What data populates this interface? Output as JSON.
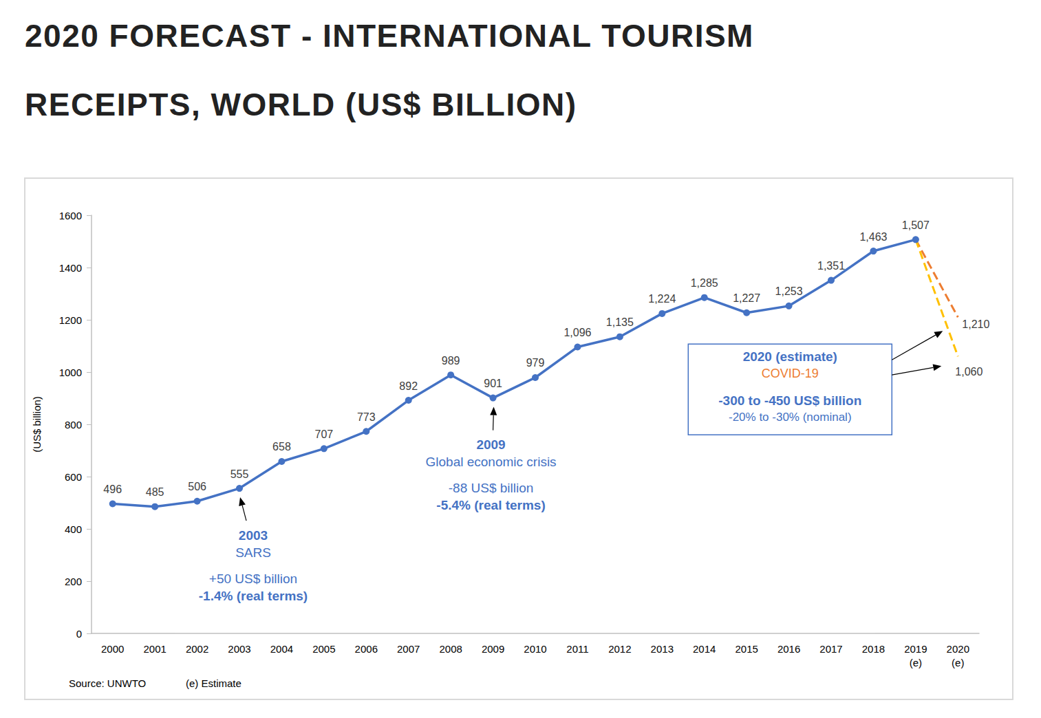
{
  "chart_data": {
    "type": "line",
    "title": "2020 FORECAST - INTERNATIONAL TOURISM RECEIPTS, WORLD (US$ BILLION)",
    "y_label": "(US$ billion)",
    "categories": [
      "2000",
      "2001",
      "2002",
      "2003",
      "2004",
      "2005",
      "2006",
      "2007",
      "2008",
      "2009",
      "2010",
      "2011",
      "2012",
      "2013",
      "2014",
      "2015",
      "2016",
      "2017",
      "2018",
      "2019\n(e)",
      "2020\n(e)"
    ],
    "series": [
      {
        "color": "#4472c4",
        "marker": "circle",
        "line_style": "solid",
        "values": [
          496,
          485,
          506,
          555,
          658,
          707,
          773,
          892,
          989,
          901,
          979,
          1096,
          1135,
          1224,
          1285,
          1227,
          1253,
          1351,
          1463,
          1507,
          null
        ],
        "value_labels": [
          "496",
          "485",
          "506",
          "555",
          "658",
          "707",
          "773",
          "892",
          "989",
          "901",
          "979",
          "1,096",
          "1,135",
          "1,224",
          "1,285",
          "1,227",
          "1,253",
          "1,351",
          "1,463",
          "1,507",
          null
        ]
      },
      {
        "color": "#ed7d31",
        "marker": "none",
        "line_style": "dashed",
        "values": [
          null,
          null,
          null,
          null,
          null,
          null,
          null,
          null,
          null,
          null,
          null,
          null,
          null,
          null,
          null,
          null,
          null,
          null,
          null,
          1507,
          1210
        ],
        "value_labels": [
          null,
          null,
          null,
          null,
          null,
          null,
          null,
          null,
          null,
          null,
          null,
          null,
          null,
          null,
          null,
          null,
          null,
          null,
          null,
          null,
          "1,210"
        ]
      },
      {
        "color": "#ffc000",
        "marker": "none",
        "line_style": "dashed",
        "values": [
          null,
          null,
          null,
          null,
          null,
          null,
          null,
          null,
          null,
          null,
          null,
          null,
          null,
          null,
          null,
          null,
          null,
          null,
          null,
          1507,
          1060
        ],
        "value_labels": [
          null,
          null,
          null,
          null,
          null,
          null,
          null,
          null,
          null,
          null,
          null,
          null,
          null,
          null,
          null,
          null,
          null,
          null,
          null,
          null,
          "1,060"
        ]
      }
    ],
    "ylim": [
      0,
      1600
    ],
    "yticks": [
      0,
      200,
      400,
      600,
      800,
      1000,
      1200,
      1400,
      1600
    ],
    "grid": false,
    "data_labels": true,
    "annotations": [
      {
        "x": "2003",
        "lines": [
          "2003",
          "SARS",
          "+50 US$ billion",
          "-1.4% (real terms)"
        ]
      },
      {
        "x": "2009",
        "lines": [
          "2009",
          "Global economic crisis",
          "-88 US$ billion",
          "-5.4% (real terms)"
        ]
      }
    ],
    "box": {
      "x": "2020\n(e)",
      "lines": [
        "2020 (estimate)",
        "COVID-19",
        "-300 to -450 US$ billion",
        "-20% to -30% (nominal)"
      ]
    },
    "source": "Source: UNWTO",
    "note": "(e) Estimate"
  }
}
